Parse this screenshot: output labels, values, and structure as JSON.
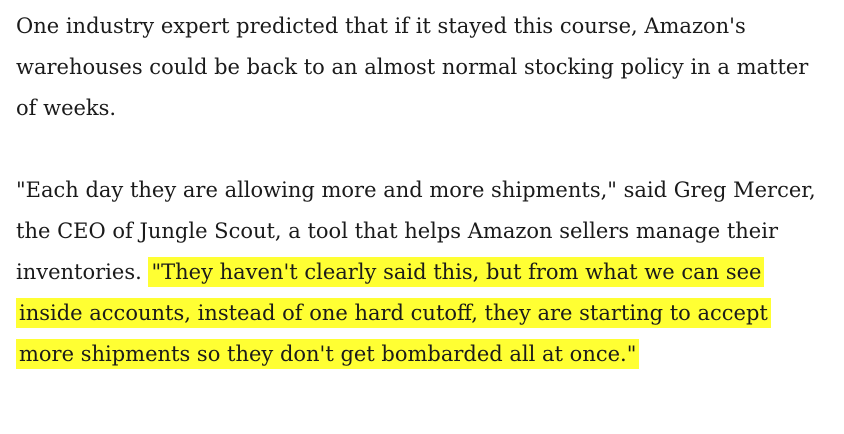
{
  "article": {
    "paragraph_1": "One industry expert predicted that if it stayed this course, Amazon's warehouses could be back to an almost normal stocking policy in a matter of weeks.",
    "paragraph_2": {
      "lead": "\"Each day they are allowing more and more shipments,\" said Greg Mercer, the CEO of Jungle Scout, a tool that helps Amazon sellers manage their inventories. ",
      "highlighted_quote": "\"They haven't clearly said this, but from what we can see inside accounts, instead of one hard cutoff, they are starting to accept more shipments so they don't get bombarded all at once.\""
    }
  },
  "colors": {
    "text": "#1a1a1a",
    "highlight": "#ffff33",
    "background": "#ffffff"
  }
}
